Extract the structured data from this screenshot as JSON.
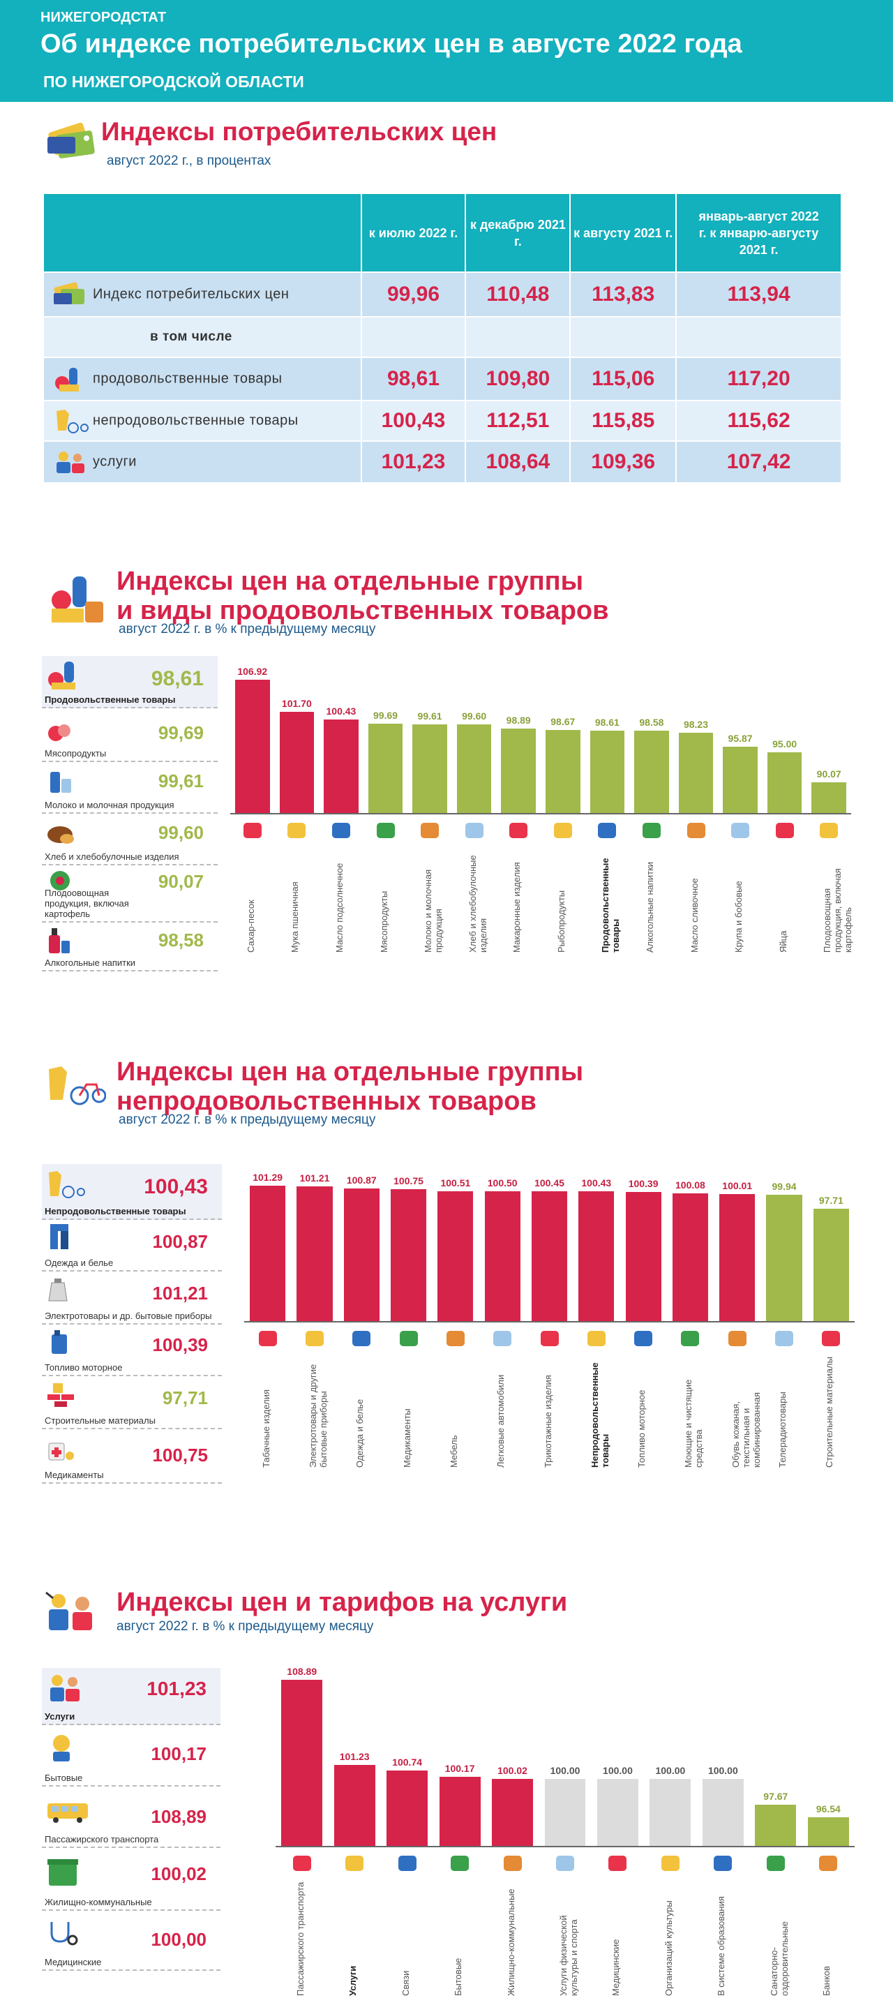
{
  "header": {
    "org": "НИЖЕГОРОДСТАТ",
    "title": "Об индексе потребительских цен в августе 2022 года",
    "subtitle": "ПО НИЖЕГОРОДСКОЙ ОБЛАСТИ"
  },
  "colors": {
    "accent": "#13b0bd",
    "red": "#d6234a",
    "green": "#a0b94a",
    "gray": "#dcdcdc"
  },
  "cpi": {
    "title": "Индексы потребительских цен",
    "subtitle": "август 2022 г., в процентах",
    "columns": [
      "к июлю 2022 г.",
      "к декабрю 2021 г.",
      "к августу 2021 г.",
      "январь-август 2022 г. к январю-августу 2021 г."
    ],
    "rows": [
      {
        "label": "Индекс потребительских цен",
        "icon": "price-tags-icon",
        "values": [
          "99,96",
          "110,48",
          "113,83",
          "113,94"
        ]
      },
      {
        "label": "в том числе",
        "icon": "",
        "values": [
          "",
          "",
          "",
          ""
        ]
      },
      {
        "label": "продовольственные товары",
        "icon": "grocery-icon",
        "values": [
          "98,61",
          "109,80",
          "115,06",
          "117,20"
        ]
      },
      {
        "label": "непродовольственные товары",
        "icon": "clothes-bike-icon",
        "values": [
          "100,43",
          "112,51",
          "115,85",
          "115,62"
        ]
      },
      {
        "label": "услуги",
        "icon": "services-people-icon",
        "values": [
          "101,23",
          "108,64",
          "109,36",
          "107,42"
        ]
      }
    ]
  },
  "food": {
    "title_line1": "Индексы цен на отдельные группы",
    "title_line2": "и виды продовольственных товаров",
    "subtitle": "август 2022 г. в % к предыдущему  месяцу",
    "side": [
      {
        "label": "Продовольственные товары",
        "value": "98,61"
      },
      {
        "label": "Мясопродукты",
        "value": "99,69"
      },
      {
        "label": "Молоко  и молочная  продукция",
        "value": "99,61"
      },
      {
        "label": "Хлеб  и хлебобулочные  изделия",
        "value": "99,60"
      },
      {
        "label": "Плодоовощная продукция, включая картофель",
        "value": "90,07"
      },
      {
        "label": "Алкогольные  напитки",
        "value": "98,58"
      }
    ],
    "chart_data": {
      "type": "bar",
      "title": "Индексы цен на отдельные группы и виды продовольственных товаров",
      "ylabel": "% к предыдущему месяцу",
      "categories": [
        "Сахар-песок",
        "Мука пшеничная",
        "Масло подсолнечное",
        "Мясопродукты",
        "Молоко и молочная продукция",
        "Хлеб и хлебобулочные изделия",
        "Макаронные изделия",
        "Рыбопродукты",
        "Продовольственные товары",
        "Алкогольные напитки",
        "Масло сливочное",
        "Крупа и бобовые",
        "Яйца",
        "Плодоовощная продукция, включая картофель"
      ],
      "values": [
        106.92,
        101.7,
        100.43,
        99.69,
        99.61,
        99.6,
        98.89,
        98.67,
        98.61,
        98.58,
        98.23,
        95.87,
        95.0,
        90.07
      ],
      "labels": [
        "106.92",
        "101.70",
        "100.43",
        "99.69",
        "99.61",
        "99.60",
        "98.89",
        "98.67",
        "98.61",
        "98.58",
        "98.23",
        "95.87",
        "95.00",
        "90.07"
      ],
      "bold": [
        8
      ],
      "ylim": [
        85,
        108
      ]
    }
  },
  "nonfood": {
    "title_line1": "Индексы цен на отдельные группы",
    "title_line2": "непродовольственных товаров",
    "subtitle": "август 2022 г. в % к предыдущему  месяцу",
    "side": [
      {
        "label": "Непродовольственные товары",
        "value": "100,43"
      },
      {
        "label": "Одежда и белье",
        "value": "100,87"
      },
      {
        "label": "Электротовары  и др. бытовые приборы",
        "value": "101,21"
      },
      {
        "label": "Топливо  моторное",
        "value": "100,39"
      },
      {
        "label": "Строительные  материалы",
        "value": "97,71"
      },
      {
        "label": "Медикаменты",
        "value": "100,75"
      }
    ],
    "chart_data": {
      "type": "bar",
      "title": "Индексы цен на отдельные группы непродовольственных товаров",
      "ylabel": "% к предыдущему месяцу",
      "categories": [
        "Табачные изделия",
        "Электротовары и другие бытовые приборы",
        "Одежда и белье",
        "Медикаменты",
        "Мебель",
        "Легковые автомобили",
        "Трикотажные изделия",
        "Непродовольственные товары",
        "Топливо моторное",
        "Моющие и чистящие средства",
        "Обувь кожаная, текстильная и комбинированная",
        "Телерадиотовары",
        "Строительные материалы"
      ],
      "values": [
        101.29,
        101.21,
        100.87,
        100.75,
        100.51,
        100.5,
        100.45,
        100.43,
        100.39,
        100.08,
        100.01,
        99.94,
        97.71
      ],
      "labels": [
        "101.29",
        "101.21",
        "100.87",
        "100.75",
        "100.51",
        "100.50",
        "100.45",
        "100.43",
        "100.39",
        "100.08",
        "100.01",
        "99.94",
        "97.71"
      ],
      "bold": [
        7
      ],
      "ylim": [
        80,
        102
      ]
    }
  },
  "services": {
    "title": "Индексы цен и тарифов на услуги",
    "subtitle": "август 2022 г. в % к предыдущему  месяцу",
    "side": [
      {
        "label": "Услуги",
        "value": "101,23"
      },
      {
        "label": "Бытовые",
        "value": "100,17"
      },
      {
        "label": "Пассажирского  транспорта",
        "value": "108,89"
      },
      {
        "label": "Жилищно-коммунальные",
        "value": "100,02"
      },
      {
        "label": "Медицинские",
        "value": "100,00"
      }
    ],
    "chart_data": {
      "type": "bar",
      "title": "Индексы цен и тарифов на услуги",
      "ylabel": "% к предыдущему месяцу",
      "categories": [
        "Пассажирского транспорта",
        "Услуги",
        "Связи",
        "Бытовые",
        "Жилищно-коммунальные",
        "Услуги физической культуры и спорта",
        "Медицинские",
        "Организаций культуры",
        "В системе образования",
        "Санаторно-оздоровительные",
        "Банков"
      ],
      "values": [
        108.89,
        101.23,
        100.74,
        100.17,
        100.02,
        100.0,
        100.0,
        100.0,
        100.0,
        97.67,
        96.54
      ],
      "labels": [
        "108.89",
        "101.23",
        "100.74",
        "100.17",
        "100.02",
        "100.00",
        "100.00",
        "100.00",
        "100.00",
        "97.67",
        "96.54"
      ],
      "bold": [
        1
      ],
      "ylim": [
        94,
        109
      ]
    }
  }
}
